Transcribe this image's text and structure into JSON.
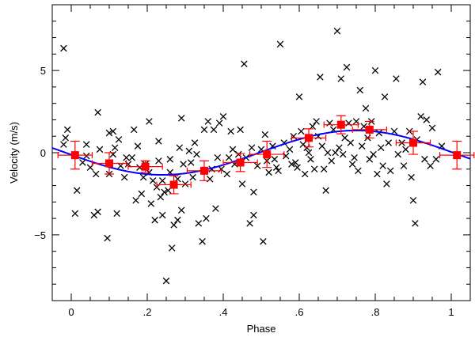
{
  "chart_data": {
    "type": "scatter",
    "xlabel": "Phase",
    "ylabel": "Velocity (m/s)",
    "xlim": [
      -0.05,
      1.05
    ],
    "ylim": [
      -9,
      9
    ],
    "x_ticks": [
      0,
      0.2,
      0.4,
      0.6,
      0.8,
      1.0
    ],
    "x_tick_labels": [
      "0",
      ".2",
      ".4",
      ".6",
      ".8",
      "1"
    ],
    "y_ticks": [
      -5,
      0,
      5
    ],
    "y_tick_labels": [
      "−5",
      "0",
      "5"
    ],
    "grid": false,
    "legend": "none",
    "colors": {
      "points": "#000000",
      "binned": "#ff0000",
      "model": "#0000ff"
    },
    "raw_points": [
      [
        -0.02,
        6.35
      ],
      [
        -0.01,
        1.4
      ],
      [
        -0.015,
        0.9
      ],
      [
        -0.02,
        0.5
      ],
      [
        0.01,
        -3.7
      ],
      [
        0.015,
        -2.3
      ],
      [
        0.03,
        -0.6
      ],
      [
        0.04,
        -0.2
      ],
      [
        0.04,
        0.5
      ],
      [
        0.05,
        -0.9
      ],
      [
        0.06,
        -3.8
      ],
      [
        0.07,
        -3.6
      ],
      [
        0.065,
        -1.3
      ],
      [
        0.07,
        2.45
      ],
      [
        0.075,
        0.2
      ],
      [
        0.095,
        -5.2
      ],
      [
        0.1,
        1.2
      ],
      [
        0.1,
        -1.3
      ],
      [
        0.11,
        1.3
      ],
      [
        0.11,
        -0.1
      ],
      [
        0.115,
        0.3
      ],
      [
        0.12,
        -3.7
      ],
      [
        0.125,
        0.8
      ],
      [
        0.13,
        -0.8
      ],
      [
        0.14,
        -1.5
      ],
      [
        0.145,
        -0.3
      ],
      [
        0.15,
        -0.7
      ],
      [
        0.16,
        -0.3
      ],
      [
        0.165,
        1.4
      ],
      [
        0.17,
        -2.9
      ],
      [
        0.175,
        0.4
      ],
      [
        0.18,
        -0.9
      ],
      [
        0.185,
        -2.5
      ],
      [
        0.19,
        -1.5
      ],
      [
        0.195,
        -0.7
      ],
      [
        0.205,
        1.9
      ],
      [
        0.205,
        -1.2
      ],
      [
        0.21,
        -3.1
      ],
      [
        0.215,
        -1.7
      ],
      [
        0.22,
        -4.1
      ],
      [
        0.225,
        -2.1
      ],
      [
        0.23,
        -0.5
      ],
      [
        0.23,
        0.7
      ],
      [
        0.235,
        -2.7
      ],
      [
        0.24,
        -3.8
      ],
      [
        0.24,
        -1.7
      ],
      [
        0.245,
        -2.4
      ],
      [
        0.25,
        -7.8
      ],
      [
        0.255,
        -2.3
      ],
      [
        0.26,
        -1.2
      ],
      [
        0.26,
        -0.4
      ],
      [
        0.265,
        -5.8
      ],
      [
        0.27,
        -4.4
      ],
      [
        0.27,
        -2.0
      ],
      [
        0.28,
        -4.1
      ],
      [
        0.28,
        -1.6
      ],
      [
        0.285,
        0.3
      ],
      [
        0.29,
        2.1
      ],
      [
        0.29,
        -3.5
      ],
      [
        0.295,
        -0.7
      ],
      [
        0.3,
        -1.9
      ],
      [
        0.31,
        0.1
      ],
      [
        0.315,
        -0.6
      ],
      [
        0.32,
        -1.5
      ],
      [
        0.325,
        0.6
      ],
      [
        0.33,
        -0.1
      ],
      [
        0.335,
        -4.3
      ],
      [
        0.345,
        -5.4
      ],
      [
        0.35,
        1.4
      ],
      [
        0.355,
        -4.0
      ],
      [
        0.36,
        1.9
      ],
      [
        0.365,
        -1.6
      ],
      [
        0.37,
        -1.0
      ],
      [
        0.375,
        1.4
      ],
      [
        0.38,
        -3.4
      ],
      [
        0.385,
        -0.3
      ],
      [
        0.39,
        1.8
      ],
      [
        0.395,
        -1.0
      ],
      [
        0.4,
        2.2
      ],
      [
        0.41,
        -1.3
      ],
      [
        0.415,
        -0.3
      ],
      [
        0.42,
        1.3
      ],
      [
        0.425,
        0.2
      ],
      [
        0.43,
        -0.7
      ],
      [
        0.44,
        -0.1
      ],
      [
        0.445,
        1.4
      ],
      [
        0.45,
        -1.9
      ],
      [
        0.455,
        5.4
      ],
      [
        0.46,
        -0.3
      ],
      [
        0.47,
        -4.3
      ],
      [
        0.475,
        0.3
      ],
      [
        0.48,
        -2.4
      ],
      [
        0.48,
        -3.8
      ],
      [
        0.49,
        -0.8
      ],
      [
        0.5,
        0.2
      ],
      [
        0.505,
        -5.4
      ],
      [
        0.51,
        1.1
      ],
      [
        0.515,
        -0.5
      ],
      [
        0.52,
        -1.2
      ],
      [
        0.53,
        0.4
      ],
      [
        0.535,
        -0.4
      ],
      [
        0.54,
        -0.9
      ],
      [
        0.545,
        -1.1
      ],
      [
        0.55,
        6.6
      ],
      [
        0.56,
        0.6
      ],
      [
        0.565,
        -0.2
      ],
      [
        0.575,
        0.2
      ],
      [
        0.58,
        -0.7
      ],
      [
        0.585,
        1.0
      ],
      [
        0.59,
        -0.6
      ],
      [
        0.595,
        -0.9
      ],
      [
        0.6,
        3.4
      ],
      [
        0.605,
        1.3
      ],
      [
        0.61,
        0.5
      ],
      [
        0.615,
        -1.3
      ],
      [
        0.62,
        0.3
      ],
      [
        0.625,
        0.0
      ],
      [
        0.63,
        -0.4
      ],
      [
        0.635,
        1.6
      ],
      [
        0.64,
        -1.0
      ],
      [
        0.645,
        1.9
      ],
      [
        0.65,
        1.0
      ],
      [
        0.655,
        4.6
      ],
      [
        0.66,
        0.4
      ],
      [
        0.665,
        -1.0
      ],
      [
        0.67,
        -2.3
      ],
      [
        0.675,
        0.0
      ],
      [
        0.68,
        1.8
      ],
      [
        0.685,
        -0.5
      ],
      [
        0.69,
        1.4
      ],
      [
        0.695,
        0.0
      ],
      [
        0.7,
        7.4
      ],
      [
        0.705,
        0.3
      ],
      [
        0.71,
        4.5
      ],
      [
        0.715,
        -0.1
      ],
      [
        0.72,
        0.9
      ],
      [
        0.725,
        5.2
      ],
      [
        0.73,
        1.8
      ],
      [
        0.735,
        0.6
      ],
      [
        0.74,
        -0.7
      ],
      [
        0.745,
        -0.3
      ],
      [
        0.75,
        1.9
      ],
      [
        0.755,
        -1.1
      ],
      [
        0.76,
        3.8
      ],
      [
        0.765,
        0.4
      ],
      [
        0.77,
        1.6
      ],
      [
        0.775,
        2.7
      ],
      [
        0.78,
        0.9
      ],
      [
        0.785,
        -0.4
      ],
      [
        0.79,
        1.9
      ],
      [
        0.795,
        -0.1
      ],
      [
        0.8,
        5.0
      ],
      [
        0.805,
        -1.3
      ],
      [
        0.81,
        1.2
      ],
      [
        0.815,
        0.3
      ],
      [
        0.82,
        -0.8
      ],
      [
        0.825,
        3.4
      ],
      [
        0.83,
        -1.9
      ],
      [
        0.835,
        0.6
      ],
      [
        0.84,
        -1.1
      ],
      [
        0.85,
        1.3
      ],
      [
        0.855,
        4.5
      ],
      [
        0.86,
        -0.1
      ],
      [
        0.87,
        0.6
      ],
      [
        0.875,
        -0.8
      ],
      [
        0.88,
        0.2
      ],
      [
        0.89,
        1.3
      ],
      [
        0.895,
        -1.5
      ],
      [
        0.9,
        -2.9
      ],
      [
        0.905,
        -4.3
      ],
      [
        0.91,
        0.8
      ],
      [
        0.92,
        2.2
      ],
      [
        0.925,
        4.3
      ],
      [
        0.93,
        -0.4
      ],
      [
        0.935,
        2.0
      ],
      [
        0.945,
        -0.8
      ],
      [
        0.95,
        1.5
      ],
      [
        0.96,
        -0.4
      ],
      [
        0.965,
        4.9
      ],
      [
        0.975,
        0.4
      ]
    ],
    "binned_points": [
      {
        "x": 0.01,
        "y": -0.15,
        "xerr": 0.045,
        "yerr": 0.85
      },
      {
        "x": 0.1,
        "y": -0.65,
        "xerr": 0.045,
        "yerr": 0.65
      },
      {
        "x": 0.195,
        "y": -0.85,
        "xerr": 0.045,
        "yerr": 0.35
      },
      {
        "x": 0.27,
        "y": -1.95,
        "xerr": 0.045,
        "yerr": 0.55
      },
      {
        "x": 0.35,
        "y": -1.1,
        "xerr": 0.045,
        "yerr": 0.6
      },
      {
        "x": 0.445,
        "y": -0.6,
        "xerr": 0.045,
        "yerr": 0.55
      },
      {
        "x": 0.515,
        "y": -0.1,
        "xerr": 0.045,
        "yerr": 0.8
      },
      {
        "x": 0.625,
        "y": 0.9,
        "xerr": 0.045,
        "yerr": 0.55
      },
      {
        "x": 0.71,
        "y": 1.7,
        "xerr": 0.045,
        "yerr": 0.55
      },
      {
        "x": 0.785,
        "y": 1.4,
        "xerr": 0.045,
        "yerr": 0.5
      },
      {
        "x": 0.9,
        "y": 0.6,
        "xerr": 0.045,
        "yerr": 0.7
      },
      {
        "x": 1.015,
        "y": -0.15,
        "xerr": 0.045,
        "yerr": 0.85
      }
    ],
    "model_curve": {
      "amplitude": 1.35,
      "phase_min": 0.24,
      "phase_max": 0.75
    }
  }
}
